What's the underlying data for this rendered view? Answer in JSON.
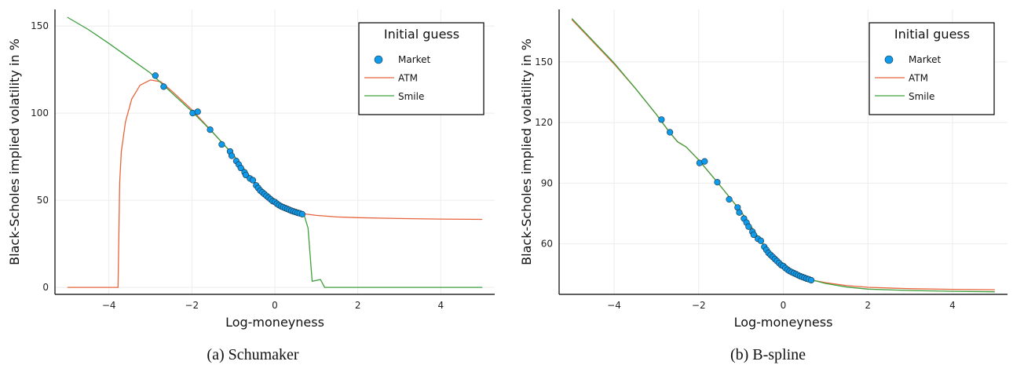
{
  "colors": {
    "market": "#0f9bea",
    "atm": "#e8643c",
    "smile": "#3d9f3d",
    "grid": "#ececec"
  },
  "chart_data": [
    {
      "type": "line",
      "caption": "(a)  Schumaker",
      "xlabel": "Log-moneyness",
      "ylabel": "Black-Scholes implied volatility in %",
      "xlim": [
        -5.3,
        5.3
      ],
      "ylim": [
        -4,
        159.5
      ],
      "xticks": [
        -4,
        -2,
        0,
        2,
        4
      ],
      "yticks": [
        0,
        50,
        100,
        150
      ],
      "grid": true,
      "legend": {
        "title": "Initial guess",
        "placement": "top-right",
        "entries": [
          "Market",
          "ATM",
          "Smile"
        ]
      },
      "series": [
        {
          "name": "ATM",
          "x": [
            -5,
            -3.78,
            -3.74,
            -3.7,
            -3.6,
            -3.45,
            -3.25,
            -3.0,
            -2.75,
            -2.5,
            -2,
            -1.5,
            -1,
            -0.5,
            0,
            0.5,
            0.7,
            1.0,
            1.5,
            2,
            3,
            4,
            5
          ],
          "y": [
            0,
            0,
            60,
            78,
            95,
            108,
            116,
            119,
            118,
            113,
            102,
            89,
            76,
            60.5,
            49,
            43.4,
            42.2,
            41.3,
            40.4,
            40,
            39.5,
            39.2,
            39
          ]
        },
        {
          "name": "Smile",
          "x": [
            -5,
            -4.5,
            -4,
            -3.5,
            -3,
            -2.5,
            -2,
            -1.5,
            -1,
            -0.5,
            0,
            0.5,
            0.7,
            0.8,
            0.9,
            1.1,
            1.2,
            5
          ],
          "y": [
            155,
            148,
            140,
            131.5,
            123,
            112,
            101,
            89,
            76,
            60.5,
            49,
            43.4,
            42,
            34,
            3.5,
            4.5,
            0,
            0
          ]
        }
      ]
    },
    {
      "type": "line",
      "caption": "(b)  B-spline",
      "xlabel": "Log-moneyness",
      "ylabel": "Black-Scholes implied volatility in %",
      "xlim": [
        -5.3,
        5.3
      ],
      "ylim": [
        35,
        176
      ],
      "xticks": [
        -4,
        -2,
        0,
        2,
        4
      ],
      "yticks": [
        60,
        90,
        120,
        150
      ],
      "grid": true,
      "legend": {
        "title": "Initial guess",
        "placement": "top-right",
        "entries": [
          "Market",
          "ATM",
          "Smile"
        ]
      },
      "series": [
        {
          "name": "ATM",
          "x": [
            -5,
            -4.5,
            -4,
            -3.5,
            -3,
            -2.7,
            -2.5,
            -2.3,
            -2,
            -1.5,
            -1,
            -0.5,
            0,
            0.5,
            0.7,
            1,
            1.5,
            2,
            3,
            4,
            5
          ],
          "y": [
            171,
            160,
            149,
            137,
            124,
            115.5,
            110.5,
            108,
            101.5,
            89,
            76,
            60.5,
            49,
            43.4,
            42,
            40.8,
            39.3,
            38.5,
            37.8,
            37.5,
            37.3
          ]
        },
        {
          "name": "Smile",
          "x": [
            -5,
            -4.5,
            -4,
            -3.5,
            -3,
            -2.7,
            -2.5,
            -2.3,
            -2,
            -1.5,
            -1,
            -0.5,
            0,
            0.5,
            0.7,
            1,
            1.5,
            2,
            3,
            4,
            5
          ],
          "y": [
            171.5,
            160.5,
            149.5,
            137,
            124,
            115.5,
            110.5,
            108,
            101.5,
            89,
            76,
            60.5,
            49,
            43.4,
            42,
            40.4,
            38.6,
            37.6,
            36.9,
            36.5,
            36.3
          ]
        }
      ]
    }
  ],
  "market": {
    "x": [
      -2.88,
      -2.68,
      -1.98,
      -1.86,
      -1.56,
      -1.28,
      -1.08,
      -1.04,
      -0.93,
      -0.87,
      -0.82,
      -0.73,
      -0.7,
      -0.6,
      -0.53,
      -0.45,
      -0.4,
      -0.35,
      -0.3,
      -0.25,
      -0.2,
      -0.15,
      -0.1,
      -0.05,
      0,
      0.05,
      0.1,
      0.15,
      0.2,
      0.25,
      0.3,
      0.35,
      0.4,
      0.45,
      0.5,
      0.55,
      0.6,
      0.66
    ],
    "y": [
      121.5,
      115.2,
      100,
      100.8,
      90.5,
      82,
      78,
      75.5,
      72.5,
      70.5,
      68.5,
      66,
      64.5,
      62.5,
      61.5,
      58.5,
      57,
      55.5,
      54.5,
      53.5,
      52.5,
      51.5,
      50.5,
      49.5,
      49,
      48,
      47.2,
      46.5,
      46,
      45.5,
      45,
      44.5,
      44,
      43.6,
      43.2,
      42.8,
      42.5,
      42
    ]
  }
}
